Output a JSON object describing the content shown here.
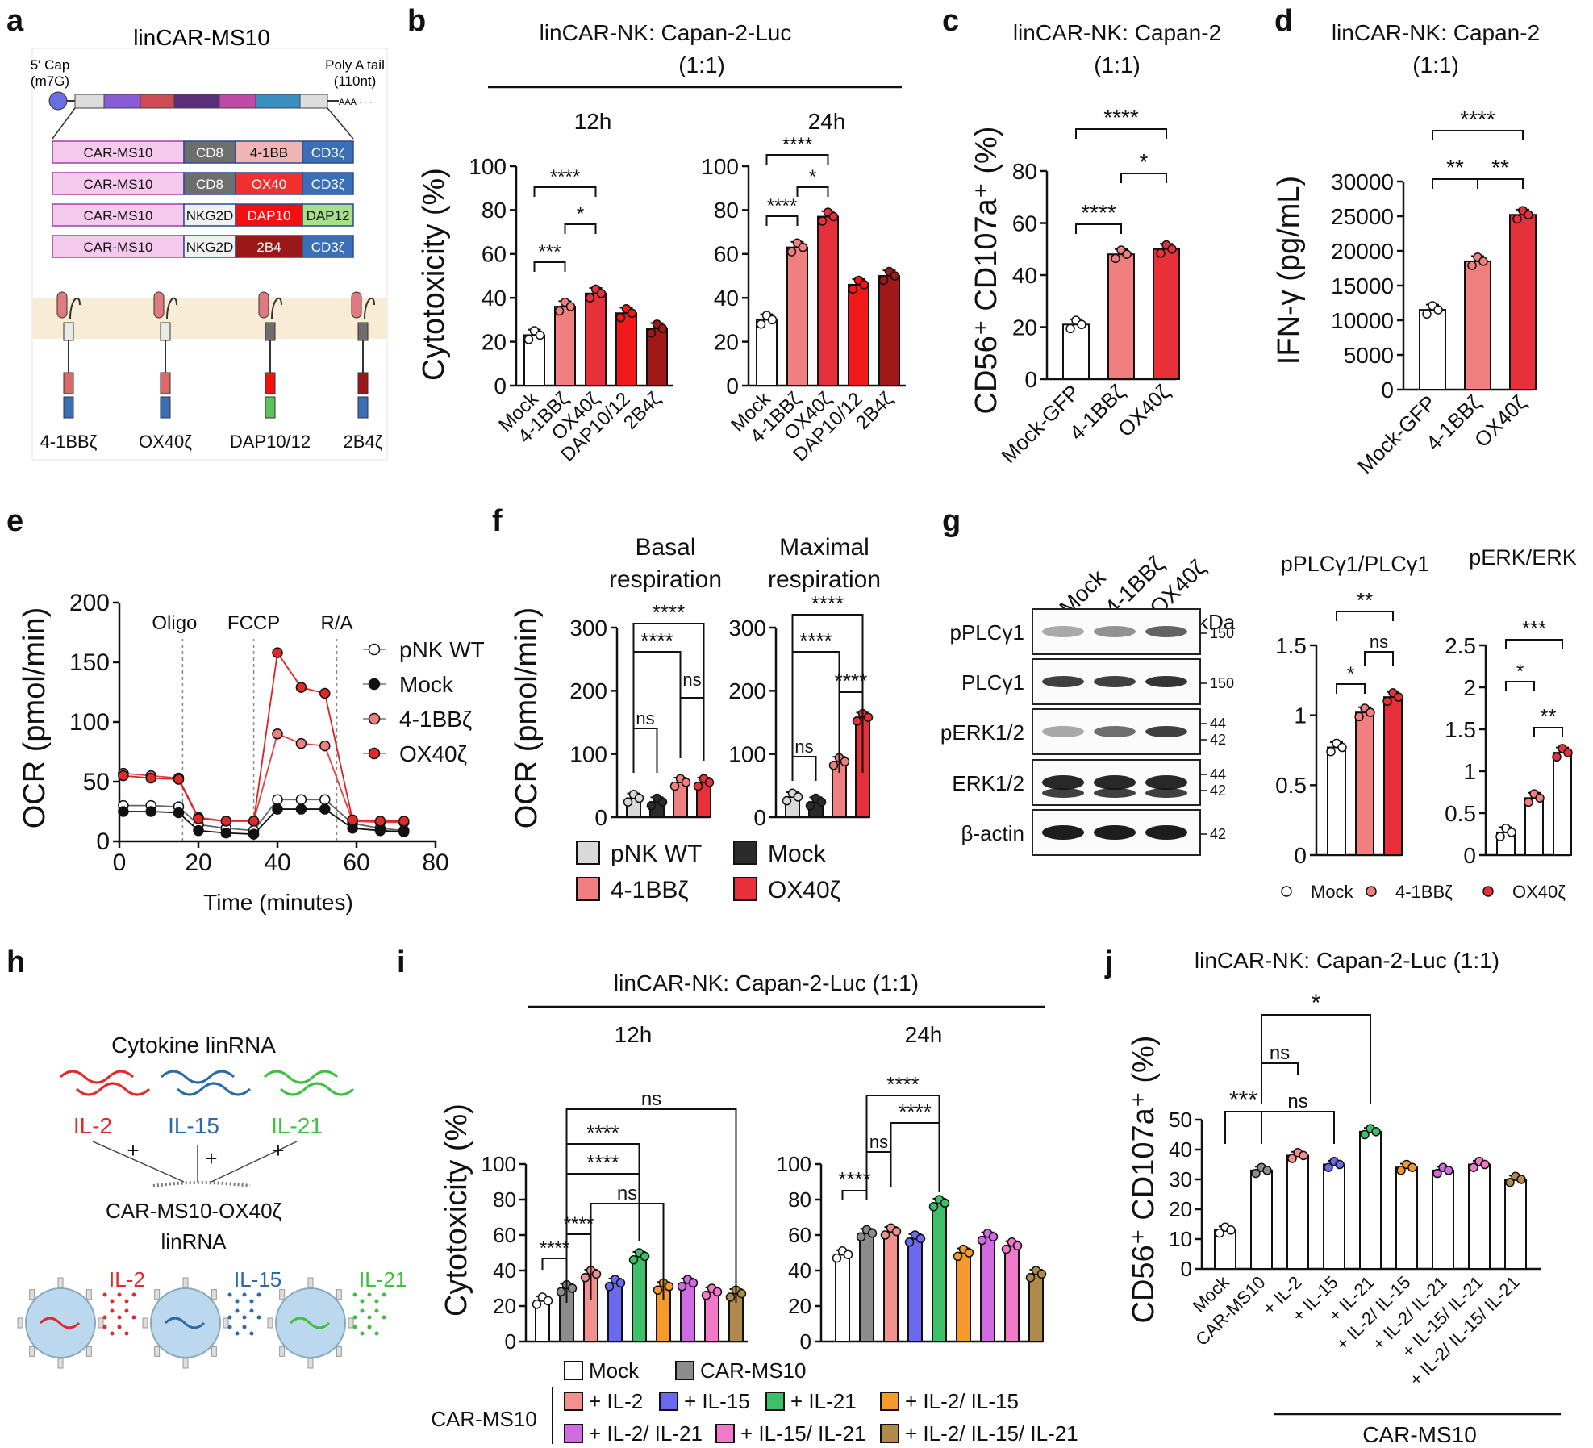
{
  "colors": {
    "pnk_wt": "#d9d9d9",
    "mock_white": "#ffffff",
    "mock_dark": "#2b2b2b",
    "bb": "#f08080",
    "ox40": "#e8303a",
    "dap": "#f01818",
    "b24": "#a01818",
    "car_ms10": "#8c8c8c",
    "il2": "#f29090",
    "il15": "#6a6aee",
    "il21": "#3ec06a",
    "il2_15": "#f59a2c",
    "il2_21": "#cf6ae0",
    "il15_21": "#f07ac8",
    "il2_15_21": "#b08a4a",
    "cd8": "#6e6e6e",
    "cd3z": "#3a6fb8",
    "car": "#f5c9ee"
  },
  "panel_letters": [
    "a",
    "b",
    "c",
    "d",
    "e",
    "f",
    "g",
    "h",
    "i",
    "j"
  ],
  "panel_a": {
    "title": "linCAR-MS10",
    "cap_label": [
      "5' Cap",
      "(m7G)"
    ],
    "polya_label": [
      "Poly A tail",
      "(110nt)"
    ],
    "aaa": "AAA · · ·",
    "constructs": [
      [
        "CAR-MS10",
        "CD8",
        "4-1BB",
        "CD3ζ"
      ],
      [
        "CAR-MS10",
        "CD8",
        "OX40",
        "CD3ζ"
      ],
      [
        "CAR-MS10",
        "NKG2D",
        "DAP10",
        "DAP12"
      ],
      [
        "CAR-MS10",
        "NKG2D",
        "2B4",
        "CD3ζ"
      ]
    ],
    "receptor_labels": [
      "4-1BBζ",
      "OX40ζ",
      "DAP10/12",
      "2B4ζ"
    ]
  },
  "panel_b": {
    "title": [
      "linCAR-NK: Capan-2-Luc",
      "(1:1)"
    ],
    "ylabel": "Cytotoxicity (%)",
    "categories": [
      "Mock",
      "4-1BBζ",
      "OX40ζ",
      "DAP10/12",
      "2B4ζ"
    ],
    "subtitles": [
      "12h",
      "24h"
    ],
    "sig_12h": [
      "****",
      "***",
      "*"
    ],
    "sig_24h": [
      "****",
      "****",
      "*"
    ]
  },
  "panel_c": {
    "title": [
      "linCAR-NK: Capan-2",
      "(1:1)"
    ],
    "ylabel": "CD56⁺ CD107a⁺ (%)",
    "categories": [
      "Mock-GFP",
      "4-1BBζ",
      "OX40ζ"
    ],
    "sig": [
      "****",
      "****",
      "*"
    ]
  },
  "panel_d": {
    "title": [
      "linCAR-NK: Capan-2",
      "(1:1)"
    ],
    "ylabel": "IFN-γ (pg/mL)",
    "categories": [
      "Mock-GFP",
      "4-1BBζ",
      "OX40ζ"
    ],
    "sig": [
      "****",
      "**",
      "**"
    ]
  },
  "panel_e": {
    "ylabel": "OCR (pmol/min)",
    "xlabel": "Time (minutes)",
    "markers": [
      "Oligo",
      "FCCP",
      "R/A"
    ],
    "legend": [
      "pNK WT",
      "Mock",
      "4-1BBζ",
      "OX40ζ"
    ]
  },
  "panel_f": {
    "ylabel": "OCR (pmol/min)",
    "titles": [
      [
        "Basal",
        "respiration"
      ],
      [
        "Maximal",
        "respiration"
      ]
    ],
    "sig_basal": [
      "****",
      "****",
      "ns",
      "ns"
    ],
    "sig_max": [
      "****",
      "****",
      "ns",
      "****"
    ],
    "legend": [
      "pNK WT",
      "Mock",
      "4-1BBζ",
      "OX40ζ"
    ]
  },
  "panel_g": {
    "lanes": [
      "Mock",
      "4-1BBζ",
      "OX40ζ"
    ],
    "kda_label": "kDa",
    "rows": [
      {
        "label": "pPLCγ1",
        "kda": [
          "150"
        ]
      },
      {
        "label": "PLCγ1",
        "kda": [
          "150"
        ]
      },
      {
        "label": "pERK1/2",
        "kda": [
          "44",
          "42"
        ]
      },
      {
        "label": "ERK1/2",
        "kda": [
          "44",
          "42"
        ]
      },
      {
        "label": "β-actin",
        "kda": [
          "42"
        ]
      }
    ],
    "titles": [
      "pPLCγ1/PLCγ1",
      "pERK/ERK"
    ],
    "sig_plc": [
      "**",
      "*",
      "ns"
    ],
    "sig_erk": [
      "***",
      "*",
      "**"
    ],
    "legend": [
      "Mock",
      "4-1BBζ",
      "OX40ζ"
    ]
  },
  "panel_h": {
    "title": "Cytokine linRNA",
    "cytokines": [
      "IL-2",
      "IL-15",
      "IL-21"
    ],
    "plus": "+",
    "product": [
      "CAR-MS10-OX40ζ",
      "linRNA"
    ]
  },
  "panel_i": {
    "title": "linCAR-NK: Capan-2-Luc (1:1)",
    "subtitles": [
      "12h",
      "24h"
    ],
    "ylabel": "Cytotoxicity (%)",
    "sig_12h": [
      "ns",
      "****",
      "****",
      "ns",
      "****",
      "****"
    ],
    "sig_24h": [
      "****",
      "****",
      "ns",
      "****"
    ],
    "legend_top": [
      "Mock",
      "CAR-MS10"
    ],
    "legend_group": "CAR-MS10",
    "legend_rows": [
      [
        "+ IL-2",
        "+ IL-15",
        "+ IL-21",
        "+ IL-2/ IL-15"
      ],
      [
        "+ IL-2/ IL-21",
        "+ IL-15/ IL-21",
        "+ IL-2/ IL-15/ IL-21"
      ]
    ]
  },
  "panel_j": {
    "title": "linCAR-NK: Capan-2-Luc (1:1)",
    "ylabel": "CD56⁺ CD107a⁺ (%)",
    "categories": [
      "Mock",
      "CAR-MS10",
      "+ IL-2",
      "+ IL-15",
      "+ IL-21",
      "+ IL-2/ IL-15",
      "+ IL-2/ IL-21",
      "+ IL-15/ IL-21",
      "+ IL-2/ IL-15/ IL-21"
    ],
    "sig": [
      "*",
      "ns",
      "***",
      "ns"
    ],
    "group_label": "CAR-MS10"
  },
  "chart_data": [
    {
      "type": "bar",
      "id": "b_12h",
      "categories": [
        "Mock",
        "4-1BBζ",
        "OX40ζ",
        "DAP10/12",
        "2B4ζ"
      ],
      "values": [
        23,
        36,
        42,
        33,
        26
      ],
      "ylim": [
        0,
        100
      ],
      "ylabel": "Cytotoxicity (%)"
    },
    {
      "type": "bar",
      "id": "b_24h",
      "categories": [
        "Mock",
        "4-1BBζ",
        "OX40ζ",
        "DAP10/12",
        "2B4ζ"
      ],
      "values": [
        30,
        63,
        77,
        46,
        50
      ],
      "ylim": [
        0,
        100
      ],
      "ylabel": "Cytotoxicity (%)"
    },
    {
      "type": "bar",
      "id": "c",
      "categories": [
        "Mock-GFP",
        "4-1BBζ",
        "OX40ζ"
      ],
      "values": [
        21,
        48,
        50
      ],
      "ylim": [
        0,
        80
      ],
      "ylabel": "CD56⁺ CD107a⁺ (%)"
    },
    {
      "type": "bar",
      "id": "d",
      "categories": [
        "Mock-GFP",
        "4-1BBζ",
        "OX40ζ"
      ],
      "values": [
        11500,
        18500,
        25200
      ],
      "ylim": [
        0,
        30000
      ],
      "ylabel": "IFN-γ (pg/mL)"
    },
    {
      "type": "line",
      "id": "e",
      "x": [
        1,
        8,
        15,
        20,
        27,
        34,
        40,
        46,
        52,
        59,
        66,
        72
      ],
      "xlim": [
        0,
        80
      ],
      "ylim": [
        0,
        200
      ],
      "series": [
        {
          "name": "pNK WT",
          "values": [
            30,
            30,
            29,
            14,
            11,
            9,
            35,
            35,
            35,
            15,
            11,
            9
          ]
        },
        {
          "name": "Mock",
          "values": [
            25,
            25,
            24,
            9,
            7,
            6,
            27,
            27,
            27,
            11,
            9,
            8
          ]
        },
        {
          "name": "4-1BBζ",
          "values": [
            57,
            55,
            53,
            20,
            17,
            17,
            90,
            82,
            80,
            17,
            16,
            16
          ]
        },
        {
          "name": "OX40ζ",
          "values": [
            55,
            53,
            52,
            19,
            17,
            17,
            158,
            129,
            124,
            18,
            17,
            17
          ]
        }
      ]
    },
    {
      "type": "bar",
      "id": "f_basal",
      "categories": [
        "pNK WT",
        "Mock",
        "4-1BBζ",
        "OX40ζ"
      ],
      "values": [
        30,
        24,
        55,
        55
      ],
      "ylim": [
        0,
        300
      ]
    },
    {
      "type": "bar",
      "id": "f_max",
      "categories": [
        "pNK WT",
        "Mock",
        "4-1BBζ",
        "OX40ζ"
      ],
      "values": [
        32,
        24,
        88,
        158
      ],
      "ylim": [
        0,
        300
      ]
    },
    {
      "type": "bar",
      "id": "g_plc",
      "categories": [
        "Mock",
        "4-1BBζ",
        "OX40ζ"
      ],
      "values": [
        0.77,
        1.02,
        1.13
      ],
      "ylim": [
        0,
        1.5
      ]
    },
    {
      "type": "bar",
      "id": "g_erk",
      "categories": [
        "Mock",
        "4-1BBζ",
        "OX40ζ"
      ],
      "values": [
        0.27,
        0.68,
        1.22
      ],
      "ylim": [
        0,
        2.5
      ]
    },
    {
      "type": "bar",
      "id": "i_12h",
      "categories": [
        "Mock",
        "CAR-MS10",
        "+ IL-2",
        "+ IL-15",
        "+ IL-21",
        "+ IL-2/ IL-15",
        "+ IL-2/ IL-21",
        "+ IL-15/ IL-21",
        "+ IL-2/ IL-15/ IL-21"
      ],
      "values": [
        23,
        30,
        38,
        33,
        48,
        31,
        33,
        28,
        27
      ],
      "ylim": [
        0,
        100
      ]
    },
    {
      "type": "bar",
      "id": "i_24h",
      "categories": [
        "Mock",
        "CAR-MS10",
        "+ IL-2",
        "+ IL-15",
        "+ IL-21",
        "+ IL-2/ IL-15",
        "+ IL-2/ IL-21",
        "+ IL-15/ IL-21",
        "+ IL-2/ IL-15/ IL-21"
      ],
      "values": [
        49,
        61,
        62,
        58,
        78,
        50,
        59,
        54,
        38
      ],
      "ylim": [
        0,
        100
      ]
    },
    {
      "type": "bar",
      "id": "j",
      "categories": [
        "Mock",
        "CAR-MS10",
        "+ IL-2",
        "+ IL-15",
        "+ IL-21",
        "+ IL-2/ IL-15",
        "+ IL-2/ IL-21",
        "+ IL-15/ IL-21",
        "+ IL-2/ IL-15/ IL-21"
      ],
      "values": [
        13,
        33,
        38,
        35,
        46,
        34,
        33,
        35,
        30
      ],
      "ylim": [
        0,
        50
      ]
    }
  ]
}
